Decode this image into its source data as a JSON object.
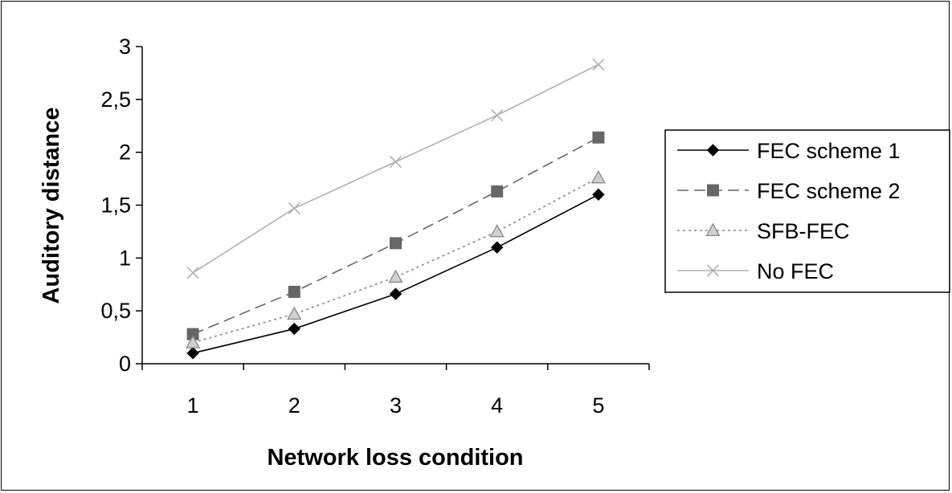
{
  "chart_data": {
    "type": "line",
    "xlabel": "Network loss condition",
    "ylabel": "Auditory distance",
    "categories": [
      "1",
      "2",
      "3",
      "4",
      "5"
    ],
    "ylim": [
      0,
      3
    ],
    "yticks": [
      0,
      0.5,
      1,
      1.5,
      2,
      2.5,
      3
    ],
    "ytick_labels": [
      "0",
      "0,5",
      "1",
      "1,5",
      "2",
      "2,5",
      "3"
    ],
    "grid": false,
    "legend_position": "right",
    "series": [
      {
        "name": "FEC scheme 1",
        "values": [
          0.1,
          0.33,
          0.66,
          1.1,
          1.6
        ],
        "color": "#000000",
        "marker": "diamond",
        "dash": "solid"
      },
      {
        "name": "FEC scheme 2",
        "values": [
          0.28,
          0.68,
          1.14,
          1.63,
          2.14
        ],
        "color": "#666666",
        "marker": "square",
        "dash": "dashed"
      },
      {
        "name": "SFB-FEC",
        "values": [
          0.2,
          0.47,
          0.82,
          1.25,
          1.76
        ],
        "color": "#888888",
        "marker": "triangle",
        "dash": "dotted"
      },
      {
        "name": "No FEC",
        "values": [
          0.86,
          1.47,
          1.91,
          2.35,
          2.83
        ],
        "color": "#b0b0b0",
        "marker": "x",
        "dash": "solid"
      }
    ]
  }
}
